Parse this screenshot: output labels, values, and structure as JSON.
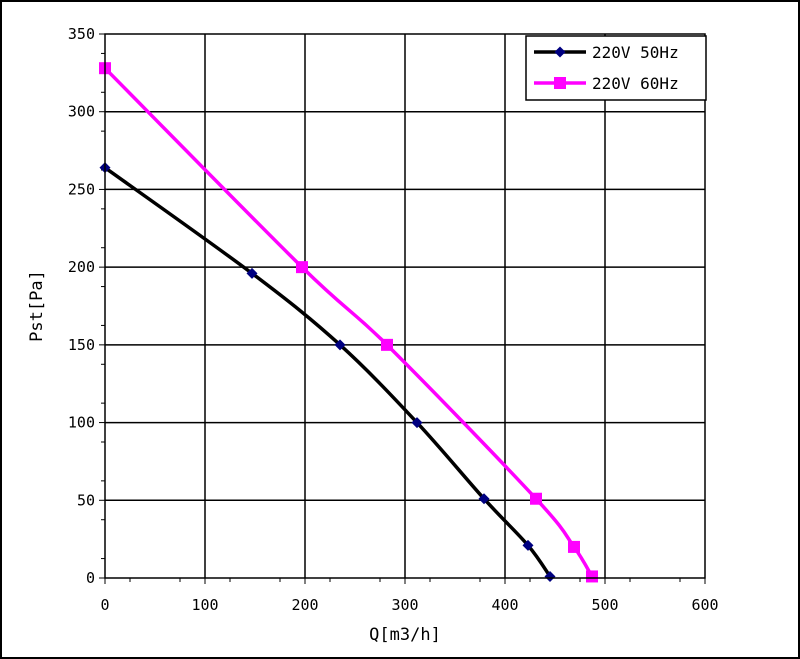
{
  "chart_data": {
    "type": "line",
    "title": "",
    "xlabel": "Q[m3/h]",
    "ylabel": "Pst[Pa]",
    "xlim": [
      0,
      600
    ],
    "ylim": [
      0,
      350
    ],
    "x_ticks": [
      "0",
      "100",
      "200",
      "300",
      "400",
      "500",
      "600"
    ],
    "y_ticks": [
      "0",
      "50",
      "100",
      "150",
      "200",
      "250",
      "300",
      "350"
    ],
    "grid": true,
    "legend_position": "top-right",
    "series": [
      {
        "name": "220V 50Hz",
        "color": "#000000",
        "marker": "diamond",
        "marker_color": "#000080",
        "x": [
          0,
          147,
          235,
          312,
          379,
          423,
          445
        ],
        "y": [
          264,
          196,
          150,
          100,
          51,
          21,
          1
        ]
      },
      {
        "name": "220V 60Hz",
        "color": "#ff00ff",
        "marker": "square",
        "marker_color": "#ff00ff",
        "x": [
          0,
          197,
          282,
          431,
          469,
          487
        ],
        "y": [
          328,
          200,
          150,
          51,
          20,
          1
        ]
      }
    ]
  }
}
